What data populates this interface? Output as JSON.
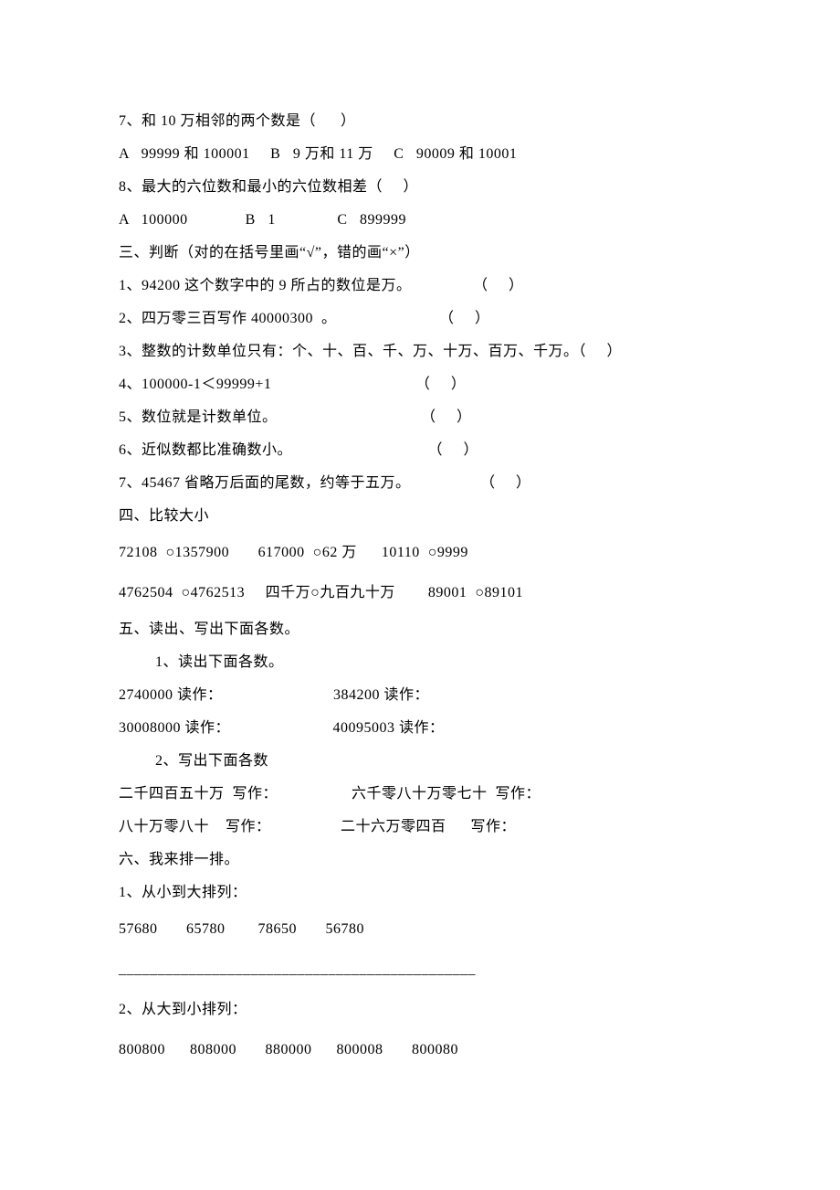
{
  "font": {
    "family": "SimSun",
    "size_pt": 12,
    "color": "#000000"
  },
  "background_color": "#ffffff",
  "lines": {
    "q7": "7、和 10 万相邻的两个数是（      ）",
    "q7opts": "A   99999 和 100001     B   9 万和 11 万     C   90009 和 10001",
    "q8": "8、最大的六位数和最小的六位数相差（     ）",
    "q8opts": "A   100000              B   1               C   899999",
    "s3": "三、判断（对的在括号里画“√”，错的画“×”）",
    "j1": "1、94200 这个数字中的 9 所占的数位是万。               （     ）",
    "j2": "2、四万零三百写作 40000300  。                         （     ）",
    "j3": "3、整数的计数单位只有：个、十、百、千、万、十万、百万、千万。（     ）",
    "j4": "4、100000-1＜99999+1                                   （     ）",
    "j5": "5、数位就是计数单位。                                   （     ）",
    "j6": "6、近似数都比准确数小。                                 （     ）",
    "j7": "7、45467 省略万后面的尾数，约等于五万。                 （     ）",
    "s4": "四、比较大小",
    "c1": "72108  ○1357900       617000  ○62 万      10110  ○9999",
    "c2": "4762504  ○4762513     四千万○九百九十万        89001  ○89101",
    "s5": "五、读出、写出下面各数。",
    "r0": "1、读出下面各数。",
    "r1": "2740000 读作：                           384200 读作：",
    "r2": "30008000 读作：                         40095003 读作：",
    "w0": "2、写出下面各数",
    "w1": "二千四百五十万  写作：                  六千零八十万零七十  写作：",
    "w2": "八十万零八十    写作：                 二十六万零四百      写作：",
    "s6": "六、我来排一排。",
    "p1a": "1、从小到大排列：",
    "p1b": "57680       65780        78650       56780",
    "blank": "______________________________________________",
    "p2a": "2、从大到小排列：",
    "p2b": "800800      808000       880000      800008       800080"
  }
}
